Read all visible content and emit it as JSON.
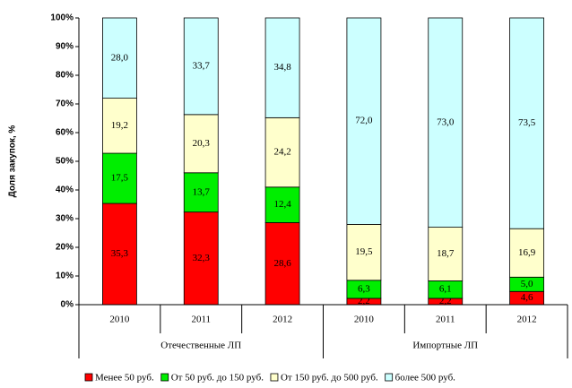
{
  "chart_data": {
    "type": "stacked_bar",
    "y_label": "Доля закупок, %",
    "categories": [
      "2010",
      "2011",
      "2012",
      "2010",
      "2011",
      "2012"
    ],
    "group_labels": [
      "Отечественные ЛП",
      "Импортные ЛП"
    ],
    "series": [
      {
        "name": "Менее 50 руб.",
        "color": "#ff0000",
        "values": [
          35.3,
          32.3,
          28.6,
          2.2,
          2.2,
          4.6
        ],
        "value_labels": [
          "35,3",
          "32,3",
          "28,6",
          "2,2",
          "2,2",
          "4,6"
        ]
      },
      {
        "name": "От 50 руб. до 150 руб.",
        "color": "#00ee00",
        "values": [
          17.5,
          13.7,
          12.4,
          6.3,
          6.1,
          5.0
        ],
        "value_labels": [
          "17,5",
          "13,7",
          "12,4",
          "6,3",
          "6,1",
          "5,0"
        ]
      },
      {
        "name": "От 150 руб. до 500 руб.",
        "color": "#ffffcc",
        "values": [
          19.2,
          20.3,
          24.2,
          19.5,
          18.7,
          16.9
        ],
        "value_labels": [
          "19,2",
          "20,3",
          "24,2",
          "19,5",
          "18,7",
          "16,9"
        ]
      },
      {
        "name": "более 500 руб.",
        "color": "#ccffff",
        "values": [
          28.0,
          33.7,
          34.8,
          72.0,
          73.0,
          73.5
        ],
        "value_labels": [
          "28,0",
          "33,7",
          "34,8",
          "72,0",
          "73,0",
          "73,5"
        ]
      }
    ],
    "ylim": [
      0,
      100
    ],
    "yticks": [
      {
        "value": 0,
        "label": "0%"
      },
      {
        "value": 10,
        "label": "10%"
      },
      {
        "value": 20,
        "label": "20%"
      },
      {
        "value": 30,
        "label": "30%"
      },
      {
        "value": 40,
        "label": "40%"
      },
      {
        "value": 50,
        "label": "50%"
      },
      {
        "value": 60,
        "label": "60%"
      },
      {
        "value": 70,
        "label": "70%"
      },
      {
        "value": 80,
        "label": "80%"
      },
      {
        "value": 90,
        "label": "90%"
      },
      {
        "value": 100,
        "label": "100%"
      }
    ]
  }
}
